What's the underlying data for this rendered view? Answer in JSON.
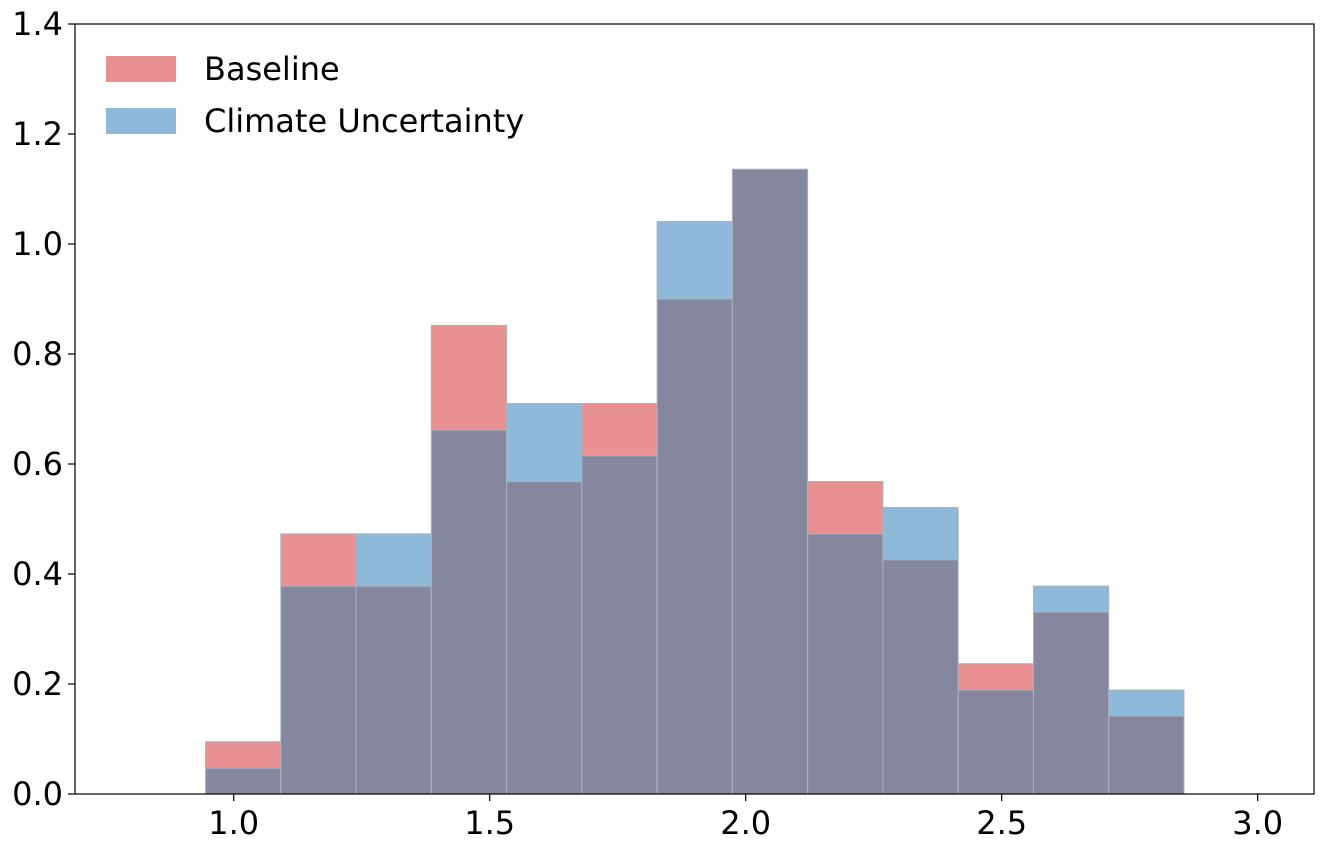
{
  "chart_data": {
    "type": "bar",
    "subtype": "overlapping-histogram",
    "title": "",
    "xlabel": "",
    "ylabel": "",
    "xlim": [
      0.69,
      3.11
    ],
    "ylim": [
      0.0,
      1.4
    ],
    "x_ticks": [
      1.0,
      1.5,
      2.0,
      2.5,
      3.0
    ],
    "x_tick_labels": [
      "1.0",
      "1.5",
      "2.0",
      "2.5",
      "3.0"
    ],
    "y_ticks": [
      0.0,
      0.2,
      0.4,
      0.6,
      0.8,
      1.0,
      1.2,
      1.4
    ],
    "y_tick_labels": [
      "0.0",
      "0.2",
      "0.4",
      "0.6",
      "0.8",
      "1.0",
      "1.2",
      "1.4"
    ],
    "bin_edges": [
      0.945,
      1.092,
      1.239,
      1.386,
      1.533,
      1.68,
      1.827,
      1.974,
      2.121,
      2.268,
      2.415,
      2.562,
      2.709,
      2.856
    ],
    "grid": false,
    "legend_position": "top-left",
    "overlap_color": "#85879f",
    "series": [
      {
        "name": "Baseline",
        "color": "#e99192",
        "values": [
          0.095,
          0.473,
          0.378,
          0.852,
          0.568,
          0.71,
          0.9,
          1.136,
          0.568,
          0.426,
          0.237,
          0.331,
          0.142
        ]
      },
      {
        "name": "Climate Uncertainty",
        "color": "#8eb9d9",
        "values": [
          0.047,
          0.378,
          0.473,
          0.662,
          0.71,
          0.615,
          1.041,
          1.136,
          0.473,
          0.521,
          0.189,
          0.378,
          0.189
        ]
      }
    ]
  }
}
